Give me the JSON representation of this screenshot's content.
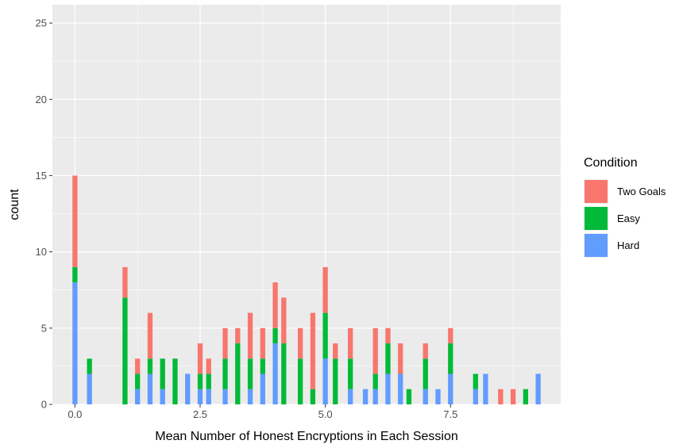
{
  "chart_data": {
    "type": "bar",
    "stacked": true,
    "xlabel": "Mean Number of Honest Encryptions in Each Session",
    "ylabel": "count",
    "xlim": [
      -0.45,
      9.7
    ],
    "ylim": [
      0,
      26.2
    ],
    "x_ticks": [
      0.0,
      2.5,
      5.0,
      7.5
    ],
    "x_tick_labels": [
      "0.0",
      "2.5",
      "5.0",
      "7.5"
    ],
    "y_ticks": [
      0,
      5,
      10,
      15,
      20,
      25
    ],
    "y_tick_labels": [
      "0",
      "5",
      "10",
      "15",
      "20",
      "25"
    ],
    "bar_width": 0.1,
    "grid": true,
    "background": "#ebebeb",
    "legend": {
      "title": "Condition",
      "placement": "right",
      "entries": [
        {
          "name": "Two Goals",
          "color": "#f8766d"
        },
        {
          "name": "Easy",
          "color": "#00ba38"
        },
        {
          "name": "Hard",
          "color": "#619cff"
        }
      ]
    },
    "stack_order_bottom_to_top": [
      "Hard",
      "Easy",
      "Two Goals"
    ],
    "bars": [
      {
        "x": 0.0,
        "hard": 8,
        "easy": 1,
        "two_goals": 6
      },
      {
        "x": 0.29,
        "hard": 2,
        "easy": 1,
        "two_goals": 0
      },
      {
        "x": 1.0,
        "hard": 0,
        "easy": 7,
        "two_goals": 2
      },
      {
        "x": 1.25,
        "hard": 1,
        "easy": 1,
        "two_goals": 1
      },
      {
        "x": 1.5,
        "hard": 2,
        "easy": 1,
        "two_goals": 3
      },
      {
        "x": 1.75,
        "hard": 1,
        "easy": 2,
        "two_goals": 0
      },
      {
        "x": 2.0,
        "hard": 0,
        "easy": 3,
        "two_goals": 0
      },
      {
        "x": 2.25,
        "hard": 2,
        "easy": 0,
        "two_goals": 0
      },
      {
        "x": 2.5,
        "hard": 1,
        "easy": 1,
        "two_goals": 2
      },
      {
        "x": 2.67,
        "hard": 1,
        "easy": 1,
        "two_goals": 1
      },
      {
        "x": 3.0,
        "hard": 1,
        "easy": 2,
        "two_goals": 2
      },
      {
        "x": 3.25,
        "hard": 0,
        "easy": 4,
        "two_goals": 1
      },
      {
        "x": 3.5,
        "hard": 1,
        "easy": 2,
        "two_goals": 3
      },
      {
        "x": 3.75,
        "hard": 2,
        "easy": 1,
        "two_goals": 2
      },
      {
        "x": 4.0,
        "hard": 4,
        "easy": 1,
        "two_goals": 3
      },
      {
        "x": 4.17,
        "hard": 0,
        "easy": 4,
        "two_goals": 3
      },
      {
        "x": 4.5,
        "hard": 0,
        "easy": 3,
        "two_goals": 2
      },
      {
        "x": 4.75,
        "hard": 0,
        "easy": 1,
        "two_goals": 5
      },
      {
        "x": 5.0,
        "hard": 3,
        "easy": 3,
        "two_goals": 3
      },
      {
        "x": 5.2,
        "hard": 0,
        "easy": 3,
        "two_goals": 1
      },
      {
        "x": 5.5,
        "hard": 1,
        "easy": 2,
        "two_goals": 2
      },
      {
        "x": 5.8,
        "hard": 1,
        "easy": 0,
        "two_goals": 0
      },
      {
        "x": 6.0,
        "hard": 1,
        "easy": 1,
        "two_goals": 3
      },
      {
        "x": 6.25,
        "hard": 2,
        "easy": 2,
        "two_goals": 1
      },
      {
        "x": 6.5,
        "hard": 2,
        "easy": 0,
        "two_goals": 2
      },
      {
        "x": 6.67,
        "hard": 0,
        "easy": 1,
        "two_goals": 0
      },
      {
        "x": 7.0,
        "hard": 1,
        "easy": 2,
        "two_goals": 1
      },
      {
        "x": 7.25,
        "hard": 1,
        "easy": 0,
        "two_goals": 0
      },
      {
        "x": 7.5,
        "hard": 2,
        "easy": 2,
        "two_goals": 1
      },
      {
        "x": 8.0,
        "hard": 1,
        "easy": 1,
        "two_goals": 0
      },
      {
        "x": 8.2,
        "hard": 2,
        "easy": 0,
        "two_goals": 0
      },
      {
        "x": 8.5,
        "hard": 0,
        "easy": 0,
        "two_goals": 1
      },
      {
        "x": 8.75,
        "hard": 0,
        "easy": 0,
        "two_goals": 1
      },
      {
        "x": 9.0,
        "hard": 0,
        "easy": 1,
        "two_goals": 0
      },
      {
        "x": 9.25,
        "hard": 2,
        "easy": 0,
        "two_goals": 0
      }
    ]
  }
}
